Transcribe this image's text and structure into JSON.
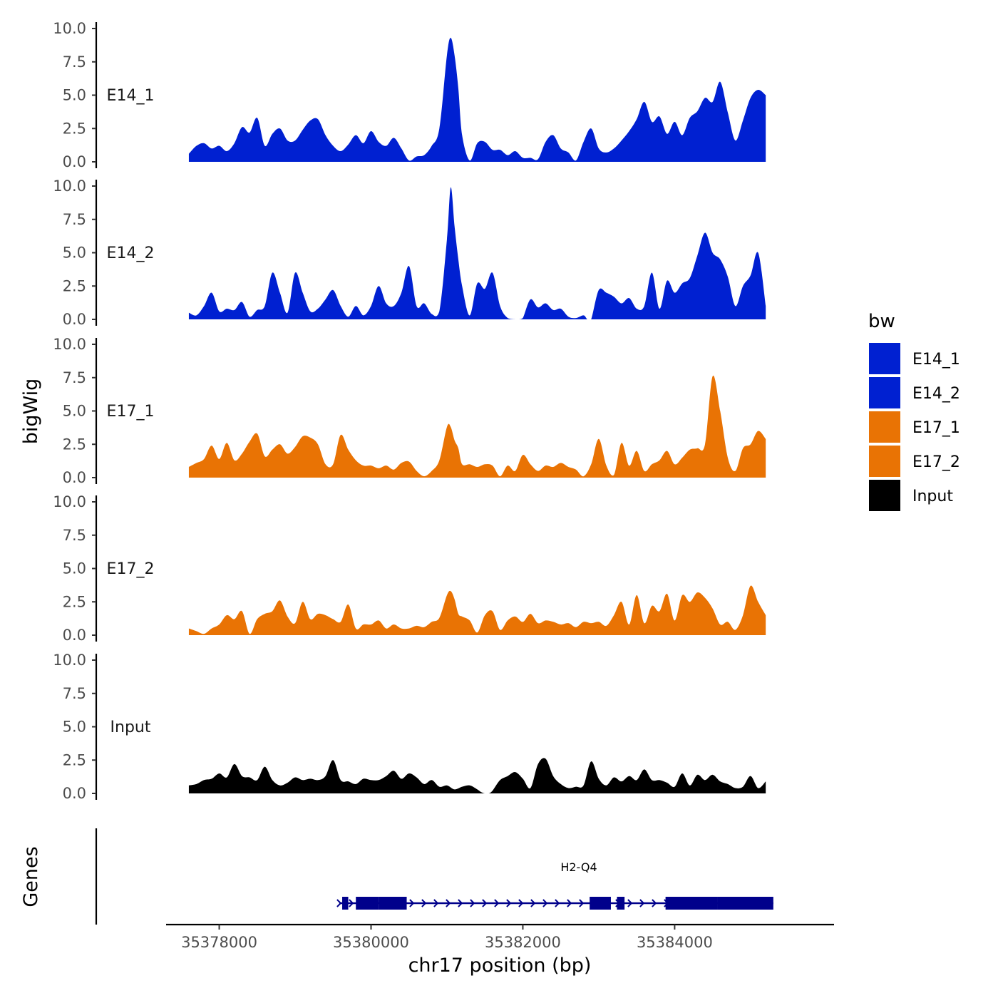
{
  "chart_data": {
    "type": "area",
    "title": "",
    "xlabel": "chr17 position (bp)",
    "ylabel": "bigWig",
    "gene_track_label": "Genes",
    "legend_title": "bw",
    "xlim": [
      35377300,
      35386100
    ],
    "ylim": [
      0,
      10
    ],
    "x_ticks": [
      35378000,
      35380000,
      35382000,
      35384000
    ],
    "x_tick_labels": [
      "35378000",
      "35380000",
      "35382000",
      "35384000"
    ],
    "y_ticks": [
      0,
      2.5,
      5,
      7.5,
      10
    ],
    "y_tick_labels": [
      "0.0",
      "2.5",
      "5.0",
      "7.5",
      "10.0"
    ],
    "legend": [
      {
        "name": "E14_1",
        "color": "#0020D1"
      },
      {
        "name": "E14_2",
        "color": "#0020D1"
      },
      {
        "name": "E17_1",
        "color": "#E97304"
      },
      {
        "name": "E17_2",
        "color": "#E97304"
      },
      {
        "name": "Input",
        "color": "#000000"
      }
    ],
    "series": [
      {
        "name": "E14_1",
        "color": "#0020D1",
        "x": [
          35377600,
          35377700,
          35377800,
          35377900,
          35378000,
          35378100,
          35378200,
          35378300,
          35378400,
          35378500,
          35378600,
          35378700,
          35378800,
          35378900,
          35379000,
          35379100,
          35379200,
          35379300,
          35379400,
          35379500,
          35379600,
          35379700,
          35379800,
          35379900,
          35380000,
          35380100,
          35380200,
          35380300,
          35380400,
          35380500,
          35380600,
          35380700,
          35380800,
          35380900,
          35381000,
          35381050,
          35381100,
          35381150,
          35381200,
          35381300,
          35381400,
          35381500,
          35381600,
          35381700,
          35381800,
          35381900,
          35382000,
          35382100,
          35382200,
          35382300,
          35382400,
          35382500,
          35382600,
          35382700,
          35382800,
          35382900,
          35383000,
          35383100,
          35383200,
          35383300,
          35383400,
          35383500,
          35383600,
          35383700,
          35383800,
          35383900,
          35384000,
          35384100,
          35384200,
          35384300,
          35384400,
          35384500,
          35384600,
          35384700,
          35384800,
          35384900,
          35385000,
          35385100,
          35385200
        ],
        "values": [
          0.6,
          1.2,
          1.4,
          1.0,
          1.2,
          0.8,
          1.4,
          2.6,
          2.2,
          3.3,
          1.2,
          2.1,
          2.5,
          1.6,
          1.6,
          2.4,
          3.1,
          3.2,
          2.0,
          1.2,
          0.8,
          1.3,
          2.0,
          1.4,
          2.3,
          1.5,
          1.2,
          1.8,
          1.0,
          0.1,
          0.4,
          0.5,
          1.2,
          2.5,
          8.0,
          9.3,
          8.0,
          5.5,
          2.0,
          0.1,
          1.4,
          1.5,
          0.9,
          0.9,
          0.5,
          0.8,
          0.3,
          0.3,
          0.2,
          1.5,
          2.0,
          1.0,
          0.7,
          0.1,
          1.5,
          2.5,
          1.0,
          0.7,
          1.0,
          1.6,
          2.3,
          3.2,
          4.5,
          3.0,
          3.4,
          2.1,
          3.0,
          2.0,
          3.3,
          3.8,
          4.8,
          4.5,
          6.0,
          3.7,
          1.6,
          3.1,
          4.8,
          5.4,
          5.0
        ]
      },
      {
        "name": "E14_2",
        "color": "#0020D1",
        "x": [
          35377600,
          35377700,
          35377800,
          35377900,
          35378000,
          35378100,
          35378200,
          35378300,
          35378400,
          35378500,
          35378600,
          35378700,
          35378800,
          35378900,
          35379000,
          35379100,
          35379200,
          35379300,
          35379400,
          35379500,
          35379600,
          35379700,
          35379800,
          35379900,
          35380000,
          35380100,
          35380200,
          35380300,
          35380400,
          35380500,
          35380600,
          35380700,
          35380800,
          35380900,
          35381000,
          35381050,
          35381100,
          35381150,
          35381200,
          35381300,
          35381400,
          35381500,
          35381600,
          35381700,
          35381800,
          35381900,
          35381950,
          35382000,
          35382100,
          35382200,
          35382300,
          35382400,
          35382500,
          35382600,
          35382700,
          35382800,
          35382850,
          35382900,
          35383000,
          35383100,
          35383200,
          35383300,
          35383400,
          35383500,
          35383600,
          35383700,
          35383800,
          35383900,
          35384000,
          35384100,
          35384200,
          35384300,
          35384400,
          35384500,
          35384600,
          35384700,
          35384800,
          35384900,
          35385000,
          35385100,
          35385200
        ],
        "values": [
          0.5,
          0.3,
          1.0,
          2.0,
          0.6,
          0.8,
          0.7,
          1.3,
          0.2,
          0.7,
          1.0,
          3.5,
          2.0,
          0.5,
          3.5,
          2.0,
          0.6,
          0.8,
          1.5,
          2.2,
          1.0,
          0.2,
          1.0,
          0.3,
          1.0,
          2.5,
          1.2,
          1.0,
          2.0,
          4.0,
          1.0,
          1.2,
          0.4,
          0.6,
          6.0,
          9.9,
          7.0,
          4.5,
          2.5,
          0.3,
          2.7,
          2.3,
          3.5,
          1.0,
          0.1,
          0,
          0,
          0.1,
          1.5,
          0.9,
          1.2,
          0.7,
          0.8,
          0.2,
          0.1,
          0.3,
          0,
          0,
          2.2,
          2.0,
          1.7,
          1.2,
          1.6,
          0.8,
          1.0,
          3.5,
          0.8,
          2.9,
          2.0,
          2.7,
          3.1,
          4.8,
          6.5,
          5.0,
          4.5,
          3.2,
          1.0,
          2.5,
          3.3,
          5.0,
          1.0
        ]
      },
      {
        "name": "E17_1",
        "color": "#E97304",
        "x": [
          35377600,
          35377700,
          35377800,
          35377900,
          35378000,
          35378100,
          35378200,
          35378300,
          35378400,
          35378500,
          35378600,
          35378700,
          35378800,
          35378900,
          35379000,
          35379100,
          35379200,
          35379300,
          35379400,
          35379500,
          35379600,
          35379700,
          35379800,
          35379900,
          35380000,
          35380100,
          35380200,
          35380300,
          35380400,
          35380500,
          35380600,
          35380700,
          35380800,
          35380900,
          35381000,
          35381050,
          35381100,
          35381150,
          35381200,
          35381300,
          35381400,
          35381500,
          35381600,
          35381700,
          35381800,
          35381900,
          35382000,
          35382100,
          35382200,
          35382300,
          35382400,
          35382500,
          35382600,
          35382700,
          35382800,
          35382900,
          35383000,
          35383100,
          35383200,
          35383300,
          35383400,
          35383500,
          35383600,
          35383700,
          35383800,
          35383900,
          35384000,
          35384100,
          35384200,
          35384300,
          35384400,
          35384500,
          35384600,
          35384700,
          35384800,
          35384900,
          35385000,
          35385100,
          35385200
        ],
        "values": [
          0.8,
          1.1,
          1.4,
          2.4,
          1.4,
          2.6,
          1.3,
          1.8,
          2.7,
          3.3,
          1.6,
          2.1,
          2.5,
          1.8,
          2.3,
          3.1,
          3.0,
          2.5,
          1.0,
          1.0,
          3.2,
          2.1,
          1.3,
          0.9,
          0.9,
          0.7,
          0.9,
          0.6,
          1.1,
          1.2,
          0.5,
          0.1,
          0.5,
          1.3,
          3.8,
          3.8,
          2.8,
          2.2,
          1.0,
          1.0,
          0.8,
          1.0,
          0.9,
          0.1,
          0.9,
          0.5,
          1.7,
          1.0,
          0.5,
          0.9,
          0.8,
          1.1,
          0.8,
          0.6,
          0.1,
          1.0,
          2.9,
          0.9,
          0.2,
          2.6,
          0.9,
          2.0,
          0.5,
          1.0,
          1.3,
          2.0,
          1.0,
          1.5,
          2.1,
          2.2,
          2.5,
          7.6,
          5.0,
          1.5,
          0.5,
          2.2,
          2.5,
          3.5,
          2.9
        ]
      },
      {
        "name": "E17_2",
        "color": "#E97304",
        "x": [
          35377600,
          35377700,
          35377800,
          35377900,
          35378000,
          35378100,
          35378200,
          35378300,
          35378400,
          35378500,
          35378600,
          35378700,
          35378800,
          35378900,
          35379000,
          35379100,
          35379200,
          35379300,
          35379400,
          35379500,
          35379600,
          35379700,
          35379800,
          35379900,
          35380000,
          35380100,
          35380200,
          35380300,
          35380400,
          35380500,
          35380600,
          35380700,
          35380800,
          35380900,
          35381000,
          35381050,
          35381100,
          35381150,
          35381200,
          35381300,
          35381400,
          35381500,
          35381600,
          35381700,
          35381800,
          35381900,
          35382000,
          35382100,
          35382200,
          35382300,
          35382400,
          35382500,
          35382600,
          35382700,
          35382800,
          35382900,
          35383000,
          35383100,
          35383200,
          35383300,
          35383400,
          35383500,
          35383600,
          35383700,
          35383800,
          35383900,
          35384000,
          35384100,
          35384200,
          35384300,
          35384400,
          35384500,
          35384600,
          35384700,
          35384800,
          35384900,
          35385000,
          35385100,
          35385200
        ],
        "values": [
          0.5,
          0.3,
          0.1,
          0.5,
          0.8,
          1.5,
          1.2,
          1.8,
          0.1,
          1.2,
          1.6,
          1.8,
          2.6,
          1.4,
          0.9,
          2.5,
          1.2,
          1.6,
          1.5,
          1.2,
          1.0,
          2.3,
          0.5,
          0.8,
          0.8,
          1.1,
          0.5,
          0.8,
          0.5,
          0.5,
          0.7,
          0.6,
          1.0,
          1.3,
          3.0,
          3.3,
          2.7,
          1.6,
          1.4,
          1.1,
          0.2,
          1.5,
          1.8,
          0.4,
          1.1,
          1.4,
          1.0,
          1.6,
          0.9,
          1.1,
          1.0,
          0.8,
          0.9,
          0.6,
          1.0,
          0.9,
          1.0,
          0.7,
          1.5,
          2.5,
          0.8,
          3.0,
          0.9,
          2.2,
          1.8,
          3.1,
          1.1,
          3.0,
          2.5,
          3.2,
          2.8,
          2.0,
          0.8,
          1.0,
          0.4,
          1.5,
          3.7,
          2.5,
          1.5
        ]
      },
      {
        "name": "Input",
        "color": "#000000",
        "x": [
          35377600,
          35377700,
          35377800,
          35377900,
          35378000,
          35378100,
          35378200,
          35378300,
          35378400,
          35378500,
          35378600,
          35378700,
          35378800,
          35378900,
          35379000,
          35379100,
          35379200,
          35379300,
          35379400,
          35379500,
          35379600,
          35379700,
          35379800,
          35379900,
          35380000,
          35380100,
          35380200,
          35380300,
          35380400,
          35380500,
          35380600,
          35380700,
          35380800,
          35380900,
          35381000,
          35381100,
          35381200,
          35381300,
          35381400,
          35381450,
          35381500,
          35381550,
          35381600,
          35381700,
          35381800,
          35381900,
          35382000,
          35382100,
          35382200,
          35382300,
          35382400,
          35382500,
          35382600,
          35382700,
          35382800,
          35382900,
          35383000,
          35383100,
          35383200,
          35383300,
          35383400,
          35383500,
          35383600,
          35383700,
          35383800,
          35383900,
          35384000,
          35384100,
          35384200,
          35384300,
          35384400,
          35384500,
          35384600,
          35384700,
          35384800,
          35384900,
          35385000,
          35385100,
          35385200
        ],
        "values": [
          0.6,
          0.7,
          1.0,
          1.1,
          1.5,
          1.2,
          2.2,
          1.3,
          1.2,
          1.0,
          2.0,
          1.0,
          0.6,
          0.8,
          1.2,
          1.0,
          1.1,
          1.0,
          1.3,
          2.5,
          1.0,
          0.9,
          0.7,
          1.1,
          1.0,
          1.0,
          1.3,
          1.7,
          1.1,
          1.5,
          1.2,
          0.7,
          1.0,
          0.5,
          0.6,
          0.3,
          0.5,
          0.6,
          0.3,
          0.1,
          0,
          0,
          0.2,
          1.0,
          1.3,
          1.6,
          1.1,
          0.4,
          2.2,
          2.6,
          1.3,
          0.7,
          0.4,
          0.5,
          0.6,
          2.4,
          1.1,
          0.6,
          1.2,
          0.9,
          1.3,
          1.0,
          1.8,
          1.0,
          1.0,
          0.8,
          0.5,
          1.5,
          0.6,
          1.4,
          1.0,
          1.4,
          0.9,
          0.7,
          0.4,
          0.5,
          1.3,
          0.4,
          0.9
        ]
      }
    ],
    "gene": {
      "name": "H2-Q4",
      "color": "#00008B",
      "strand": "+",
      "start": 35379600,
      "end": 35385300,
      "exons": [
        [
          35379620,
          35379700
        ],
        [
          35379800,
          35380100
        ],
        [
          35380100,
          35380470
        ],
        [
          35382880,
          35383160
        ],
        [
          35383240,
          35383340
        ],
        [
          35383880,
          35384560
        ],
        [
          35384560,
          35385300
        ]
      ]
    }
  }
}
